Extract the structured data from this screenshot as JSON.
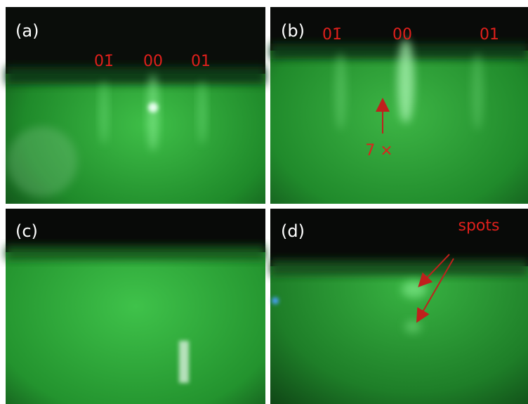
{
  "panels": [
    {
      "label": "(a)",
      "beams": [
        "01̄",
        "00",
        "01"
      ]
    },
    {
      "label": "(b)",
      "beams": [
        "01̄",
        "00",
        "01"
      ],
      "annotation": "7 ×"
    },
    {
      "label": "(c)"
    },
    {
      "label": "(d)",
      "annotation": "spots"
    }
  ]
}
